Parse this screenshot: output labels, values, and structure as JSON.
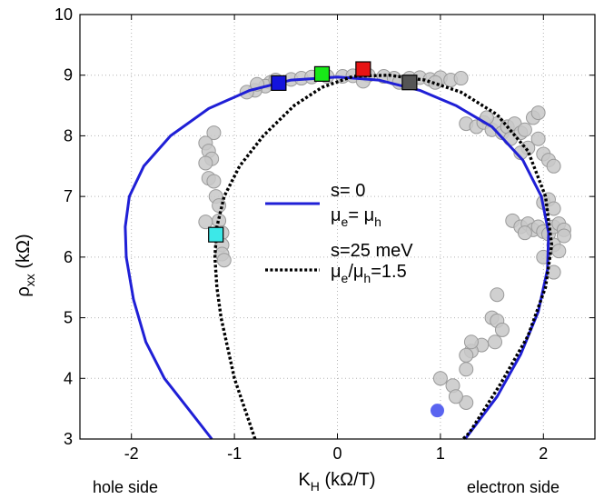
{
  "chart_data": {
    "type": "scatter",
    "x_axis": {
      "label": "K",
      "label_sub": "H",
      "label_unit": " (kΩ/T)",
      "lim": [
        -2.5,
        2.5
      ],
      "ticks": [
        -2,
        -1,
        0,
        1,
        2
      ],
      "tick_labels": [
        "-2",
        "-1",
        "0",
        "1",
        "2"
      ]
    },
    "y_axis": {
      "label": "ρ",
      "label_sub": "xx",
      "label_unit": " (kΩ)",
      "lim": [
        3,
        10
      ],
      "ticks": [
        3,
        4,
        5,
        6,
        7,
        8,
        9,
        10
      ],
      "tick_labels": [
        "3",
        "4",
        "5",
        "6",
        "7",
        "8",
        "9",
        "10"
      ]
    },
    "grid": true,
    "side_labels": {
      "left": "hole side",
      "right": "electron side"
    },
    "legend": {
      "placement": "center",
      "entries": [
        {
          "series": "model_s0",
          "line1": "s= 0",
          "line2_parts": [
            "μ",
            "e",
            "= μ",
            "h",
            ""
          ]
        },
        {
          "series": "model_s25",
          "line1": "s=25 meV",
          "line2_parts": [
            "μ",
            "e",
            "/μ",
            "h",
            "=1.5"
          ]
        }
      ]
    },
    "series": [
      {
        "id": "model_s0",
        "style": "solid",
        "color": "#1f1fd6",
        "points": [
          [
            -1.22,
            3.0
          ],
          [
            -1.45,
            3.5
          ],
          [
            -1.68,
            4.0
          ],
          [
            -1.86,
            4.6
          ],
          [
            -1.98,
            5.3
          ],
          [
            -2.05,
            6.0
          ],
          [
            -2.06,
            6.5
          ],
          [
            -2.02,
            7.0
          ],
          [
            -1.88,
            7.5
          ],
          [
            -1.62,
            8.0
          ],
          [
            -1.25,
            8.45
          ],
          [
            -0.85,
            8.75
          ],
          [
            -0.45,
            8.92
          ],
          [
            0.0,
            8.97
          ],
          [
            0.4,
            8.92
          ],
          [
            0.8,
            8.75
          ],
          [
            1.15,
            8.5
          ],
          [
            1.5,
            8.15
          ],
          [
            1.8,
            7.6
          ],
          [
            1.98,
            7.0
          ],
          [
            2.05,
            6.4
          ],
          [
            2.04,
            5.8
          ],
          [
            1.95,
            5.1
          ],
          [
            1.78,
            4.4
          ],
          [
            1.55,
            3.7
          ],
          [
            1.24,
            3.0
          ]
        ]
      },
      {
        "id": "model_s25",
        "style": "dotted",
        "color": "#000000",
        "points": [
          [
            -0.8,
            3.0
          ],
          [
            -1.0,
            4.0
          ],
          [
            -1.13,
            5.0
          ],
          [
            -1.17,
            5.5
          ],
          [
            -1.19,
            6.0
          ],
          [
            -1.17,
            6.5
          ],
          [
            -1.1,
            7.0
          ],
          [
            -0.95,
            7.5
          ],
          [
            -0.72,
            8.0
          ],
          [
            -0.42,
            8.5
          ],
          [
            -0.15,
            8.8
          ],
          [
            0.15,
            8.98
          ],
          [
            0.5,
            9.0
          ],
          [
            0.85,
            8.92
          ],
          [
            1.2,
            8.72
          ],
          [
            1.55,
            8.35
          ],
          [
            1.85,
            7.75
          ],
          [
            2.02,
            7.0
          ],
          [
            2.08,
            6.2
          ],
          [
            2.02,
            5.5
          ],
          [
            1.85,
            4.7
          ],
          [
            1.58,
            3.9
          ],
          [
            1.28,
            3.1
          ],
          [
            1.22,
            3.0
          ]
        ]
      },
      {
        "id": "measured",
        "style": "markers",
        "color": "#c8c8c8",
        "stroke": "#9a9a9a",
        "points": [
          [
            -0.65,
            8.88
          ],
          [
            -0.7,
            8.82
          ],
          [
            -0.8,
            8.75
          ],
          [
            -0.88,
            8.72
          ],
          [
            -0.6,
            8.92
          ],
          [
            -0.45,
            8.93
          ],
          [
            -0.35,
            8.95
          ],
          [
            -0.25,
            8.97
          ],
          [
            -0.1,
            8.98
          ],
          [
            0.05,
            8.98
          ],
          [
            0.15,
            8.99
          ],
          [
            0.3,
            9.0
          ],
          [
            0.45,
            8.98
          ],
          [
            0.55,
            8.95
          ],
          [
            0.7,
            8.95
          ],
          [
            0.8,
            8.96
          ],
          [
            0.9,
            8.93
          ],
          [
            1.0,
            8.96
          ],
          [
            1.1,
            8.92
          ],
          [
            1.2,
            8.95
          ],
          [
            -0.78,
            8.85
          ],
          [
            0.25,
            8.9
          ],
          [
            0.6,
            8.88
          ],
          [
            0.95,
            8.88
          ],
          [
            1.25,
            8.2
          ],
          [
            1.35,
            8.15
          ],
          [
            1.42,
            8.22
          ],
          [
            1.5,
            8.1
          ],
          [
            1.55,
            8.2
          ],
          [
            1.6,
            8.05
          ],
          [
            1.65,
            8.15
          ],
          [
            1.72,
            8.2
          ],
          [
            1.78,
            8.05
          ],
          [
            1.82,
            8.1
          ],
          [
            1.9,
            8.3
          ],
          [
            1.95,
            8.38
          ],
          [
            1.45,
            8.3
          ],
          [
            1.68,
            7.95
          ],
          [
            1.85,
            7.8
          ],
          [
            1.95,
            7.95
          ],
          [
            2.0,
            7.7
          ],
          [
            2.05,
            7.6
          ],
          [
            2.1,
            7.5
          ],
          [
            1.78,
            7.72
          ],
          [
            2.0,
            6.9
          ],
          [
            2.05,
            6.95
          ],
          [
            2.1,
            6.8
          ],
          [
            1.7,
            6.6
          ],
          [
            1.78,
            6.5
          ],
          [
            1.85,
            6.55
          ],
          [
            1.9,
            6.45
          ],
          [
            1.95,
            6.5
          ],
          [
            2.0,
            6.42
          ],
          [
            2.05,
            6.38
          ],
          [
            2.1,
            6.5
          ],
          [
            2.15,
            6.55
          ],
          [
            2.2,
            6.45
          ],
          [
            2.2,
            6.35
          ],
          [
            1.82,
            6.4
          ],
          [
            2.1,
            6.2
          ],
          [
            2.15,
            6.1
          ],
          [
            2.0,
            6.0
          ],
          [
            2.1,
            5.75
          ],
          [
            1.55,
            5.38
          ],
          [
            1.5,
            5.0
          ],
          [
            1.55,
            4.95
          ],
          [
            1.6,
            4.8
          ],
          [
            1.53,
            4.6
          ],
          [
            1.4,
            4.55
          ],
          [
            1.3,
            4.45
          ],
          [
            1.25,
            4.38
          ],
          [
            1.3,
            4.6
          ],
          [
            1.25,
            4.15
          ],
          [
            1.12,
            3.88
          ],
          [
            1.0,
            4.0
          ],
          [
            1.25,
            3.6
          ],
          [
            1.15,
            3.7
          ],
          [
            -1.2,
            8.05
          ],
          [
            -1.28,
            7.88
          ],
          [
            -1.25,
            7.75
          ],
          [
            -1.22,
            7.62
          ],
          [
            -1.28,
            7.55
          ],
          [
            -1.25,
            7.3
          ],
          [
            -1.2,
            7.25
          ],
          [
            -1.18,
            7.0
          ],
          [
            -1.15,
            6.85
          ],
          [
            -1.15,
            6.6
          ],
          [
            -1.12,
            6.4
          ],
          [
            -1.12,
            6.2
          ],
          [
            -1.12,
            6.05
          ],
          [
            -1.1,
            5.95
          ],
          [
            -1.28,
            6.58
          ]
        ]
      },
      {
        "id": "highlight_squares",
        "style": "squares",
        "points": [
          {
            "x": -0.57,
            "y": 8.87,
            "color": "#1414dc"
          },
          {
            "x": -0.15,
            "y": 9.02,
            "color": "#18e818"
          },
          {
            "x": 0.25,
            "y": 9.1,
            "color": "#e81414"
          },
          {
            "x": 0.7,
            "y": 8.88,
            "color": "#555555"
          },
          {
            "x": -1.18,
            "y": 6.37,
            "color": "#3ce8e8"
          }
        ]
      },
      {
        "id": "highlight_dot",
        "style": "dot",
        "points": [
          {
            "x": 0.97,
            "y": 3.47,
            "color": "#5a64f0"
          }
        ]
      }
    ]
  }
}
